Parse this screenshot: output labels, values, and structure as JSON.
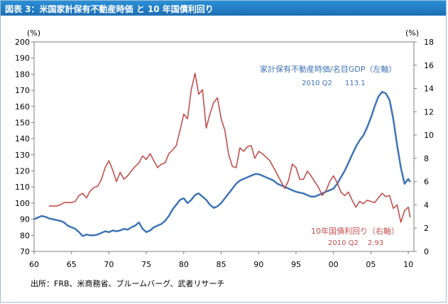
{
  "figure": {
    "title": "図表 3：米国家計保有不動産時価 と 10 年国債利回り",
    "source": "出所：FRB、米商務省、ブルームバーグ、武者リサーチ"
  },
  "chart_data": {
    "type": "line",
    "x_ticks": [
      "60",
      "65",
      "70",
      "75",
      "80",
      "85",
      "90",
      "95",
      "00",
      "05",
      "10"
    ],
    "xlim": [
      1960,
      2010.75
    ],
    "left_axis": {
      "unit": "(%)",
      "ylim": [
        70,
        200
      ],
      "ticks": [
        70,
        80,
        90,
        100,
        110,
        120,
        130,
        140,
        150,
        160,
        170,
        180,
        190,
        200
      ]
    },
    "right_axis": {
      "unit": "(%)",
      "ylim": [
        0,
        18
      ],
      "ticks": [
        0,
        2,
        4,
        6,
        8,
        10,
        12,
        14,
        16,
        18
      ]
    },
    "series": [
      {
        "name": "家計保有不動産時価/名目GDP（左軸）",
        "axis": "left",
        "color": "#3f74b5",
        "annotation": {
          "period": "2010 Q2",
          "value": "113.1"
        },
        "points": [
          [
            1960.0,
            90
          ],
          [
            1960.5,
            91
          ],
          [
            1961.0,
            92
          ],
          [
            1961.5,
            91.5
          ],
          [
            1962.0,
            90.5
          ],
          [
            1962.5,
            90
          ],
          [
            1963.0,
            89.5
          ],
          [
            1963.5,
            89
          ],
          [
            1964.0,
            88
          ],
          [
            1964.5,
            86
          ],
          [
            1965.0,
            85
          ],
          [
            1965.5,
            84
          ],
          [
            1966.0,
            82
          ],
          [
            1966.5,
            79.5
          ],
          [
            1967.0,
            80.5
          ],
          [
            1967.5,
            80
          ],
          [
            1968.0,
            80
          ],
          [
            1968.5,
            80.5
          ],
          [
            1969.0,
            81.5
          ],
          [
            1969.5,
            82.5
          ],
          [
            1970.0,
            82
          ],
          [
            1970.5,
            83
          ],
          [
            1971.0,
            82.5
          ],
          [
            1971.5,
            83
          ],
          [
            1972.0,
            84
          ],
          [
            1972.5,
            83.5
          ],
          [
            1973.0,
            85
          ],
          [
            1973.5,
            86
          ],
          [
            1974.0,
            88
          ],
          [
            1974.5,
            84
          ],
          [
            1975.0,
            82
          ],
          [
            1975.5,
            83
          ],
          [
            1976.0,
            85
          ],
          [
            1976.5,
            86
          ],
          [
            1977.0,
            87
          ],
          [
            1977.5,
            89
          ],
          [
            1978.0,
            92
          ],
          [
            1978.5,
            96
          ],
          [
            1979.0,
            99
          ],
          [
            1979.5,
            102
          ],
          [
            1980.0,
            103
          ],
          [
            1980.5,
            100
          ],
          [
            1981.0,
            102
          ],
          [
            1981.5,
            105
          ],
          [
            1982.0,
            106
          ],
          [
            1982.5,
            104
          ],
          [
            1983.0,
            102
          ],
          [
            1983.5,
            99
          ],
          [
            1984.0,
            97
          ],
          [
            1984.5,
            98
          ],
          [
            1985.0,
            100
          ],
          [
            1985.5,
            103
          ],
          [
            1986.0,
            106
          ],
          [
            1986.5,
            109
          ],
          [
            1987.0,
            112
          ],
          [
            1987.5,
            114
          ],
          [
            1988.0,
            115
          ],
          [
            1988.5,
            116
          ],
          [
            1989.0,
            117
          ],
          [
            1989.5,
            118
          ],
          [
            1990.0,
            118
          ],
          [
            1990.5,
            117
          ],
          [
            1991.0,
            116
          ],
          [
            1991.5,
            115
          ],
          [
            1992.0,
            114
          ],
          [
            1992.5,
            112
          ],
          [
            1993.0,
            111
          ],
          [
            1993.5,
            110
          ],
          [
            1994.0,
            109
          ],
          [
            1994.5,
            108
          ],
          [
            1995.0,
            107
          ],
          [
            1995.5,
            106.5
          ],
          [
            1996.0,
            106
          ],
          [
            1996.5,
            105
          ],
          [
            1997.0,
            104
          ],
          [
            1997.5,
            104
          ],
          [
            1998.0,
            105
          ],
          [
            1998.5,
            106
          ],
          [
            1999.0,
            107
          ],
          [
            1999.5,
            108
          ],
          [
            2000.0,
            109
          ],
          [
            2000.5,
            112
          ],
          [
            2001.0,
            116
          ],
          [
            2001.5,
            120
          ],
          [
            2002.0,
            125
          ],
          [
            2002.5,
            130
          ],
          [
            2003.0,
            135
          ],
          [
            2003.5,
            139
          ],
          [
            2004.0,
            142
          ],
          [
            2004.5,
            147
          ],
          [
            2005.0,
            153
          ],
          [
            2005.5,
            160
          ],
          [
            2006.0,
            166
          ],
          [
            2006.5,
            169
          ],
          [
            2007.0,
            168
          ],
          [
            2007.5,
            164
          ],
          [
            2008.0,
            152
          ],
          [
            2008.5,
            136
          ],
          [
            2009.0,
            122
          ],
          [
            2009.5,
            112
          ],
          [
            2010.0,
            115
          ],
          [
            2010.25,
            113.1
          ]
        ]
      },
      {
        "name": "10年国債利回り（右軸）",
        "axis": "right",
        "color": "#c0504d",
        "annotation": {
          "period": "2010 Q2",
          "value": "2.93"
        },
        "points": [
          [
            1962.0,
            3.9
          ],
          [
            1962.5,
            3.9
          ],
          [
            1963.0,
            3.9
          ],
          [
            1963.5,
            4.0
          ],
          [
            1964.0,
            4.2
          ],
          [
            1964.5,
            4.2
          ],
          [
            1965.0,
            4.2
          ],
          [
            1965.5,
            4.3
          ],
          [
            1966.0,
            4.8
          ],
          [
            1966.5,
            5.0
          ],
          [
            1967.0,
            4.6
          ],
          [
            1967.5,
            5.2
          ],
          [
            1968.0,
            5.5
          ],
          [
            1968.5,
            5.6
          ],
          [
            1969.0,
            6.2
          ],
          [
            1969.5,
            7.2
          ],
          [
            1970.0,
            7.8
          ],
          [
            1970.5,
            7.0
          ],
          [
            1971.0,
            6.0
          ],
          [
            1971.5,
            6.8
          ],
          [
            1972.0,
            6.2
          ],
          [
            1972.5,
            6.5
          ],
          [
            1973.0,
            6.9
          ],
          [
            1973.5,
            7.3
          ],
          [
            1974.0,
            7.6
          ],
          [
            1974.5,
            8.2
          ],
          [
            1975.0,
            7.9
          ],
          [
            1975.5,
            8.4
          ],
          [
            1976.0,
            7.8
          ],
          [
            1976.5,
            7.2
          ],
          [
            1977.0,
            7.5
          ],
          [
            1977.5,
            7.6
          ],
          [
            1978.0,
            8.4
          ],
          [
            1978.5,
            8.7
          ],
          [
            1979.0,
            9.1
          ],
          [
            1979.5,
            10.4
          ],
          [
            1980.0,
            11.8
          ],
          [
            1980.5,
            11.4
          ],
          [
            1981.0,
            13.9
          ],
          [
            1981.5,
            15.3
          ],
          [
            1982.0,
            13.5
          ],
          [
            1982.5,
            13.9
          ],
          [
            1983.0,
            10.6
          ],
          [
            1983.5,
            11.8
          ],
          [
            1984.0,
            12.8
          ],
          [
            1984.5,
            13.2
          ],
          [
            1985.0,
            11.4
          ],
          [
            1985.5,
            10.4
          ],
          [
            1986.0,
            8.3
          ],
          [
            1986.5,
            7.3
          ],
          [
            1987.0,
            7.2
          ],
          [
            1987.5,
            8.9
          ],
          [
            1988.0,
            8.6
          ],
          [
            1988.5,
            9.0
          ],
          [
            1989.0,
            9.1
          ],
          [
            1989.5,
            8.0
          ],
          [
            1990.0,
            8.6
          ],
          [
            1990.5,
            8.4
          ],
          [
            1991.0,
            8.1
          ],
          [
            1991.5,
            7.8
          ],
          [
            1992.0,
            7.2
          ],
          [
            1992.5,
            6.6
          ],
          [
            1993.0,
            6.0
          ],
          [
            1993.5,
            5.4
          ],
          [
            1994.0,
            6.1
          ],
          [
            1994.5,
            7.5
          ],
          [
            1995.0,
            7.2
          ],
          [
            1995.5,
            6.2
          ],
          [
            1996.0,
            6.2
          ],
          [
            1996.5,
            6.9
          ],
          [
            1997.0,
            6.5
          ],
          [
            1997.5,
            6.0
          ],
          [
            1998.0,
            5.5
          ],
          [
            1998.5,
            4.8
          ],
          [
            1999.0,
            5.2
          ],
          [
            1999.5,
            6.0
          ],
          [
            2000.0,
            6.5
          ],
          [
            2000.5,
            5.9
          ],
          [
            2001.0,
            5.1
          ],
          [
            2001.5,
            4.8
          ],
          [
            2002.0,
            5.1
          ],
          [
            2002.5,
            4.4
          ],
          [
            2003.0,
            3.8
          ],
          [
            2003.5,
            4.3
          ],
          [
            2004.0,
            4.1
          ],
          [
            2004.5,
            4.4
          ],
          [
            2005.0,
            4.3
          ],
          [
            2005.5,
            4.2
          ],
          [
            2006.0,
            4.6
          ],
          [
            2006.5,
            5.0
          ],
          [
            2007.0,
            4.7
          ],
          [
            2007.5,
            4.8
          ],
          [
            2008.0,
            3.7
          ],
          [
            2008.5,
            4.0
          ],
          [
            2009.0,
            2.5
          ],
          [
            2009.5,
            3.5
          ],
          [
            2010.0,
            3.8
          ],
          [
            2010.25,
            2.93
          ]
        ]
      }
    ],
    "grid": false
  }
}
